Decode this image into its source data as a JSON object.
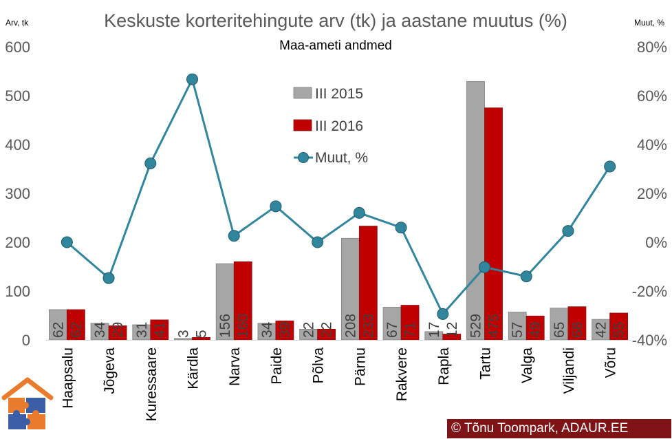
{
  "chart_data": {
    "type": "bar+line",
    "title": "Keskuste korteritehingute arv (tk) ja aastane muutus (%)",
    "subtitle": "Maa-ameti andmed",
    "y_left_label": "Arv, tk",
    "y_right_label": "Muut, %",
    "y_left_ticks": [
      "0",
      "100",
      "200",
      "300",
      "400",
      "500",
      "600"
    ],
    "y_right_ticks": [
      "-40%",
      "-20%",
      "0%",
      "20%",
      "40%",
      "60%",
      "80%"
    ],
    "ylim_left": [
      0,
      600
    ],
    "ylim_right": [
      -0.4,
      0.8
    ],
    "categories": [
      "Haapsalu",
      "Jõgeva",
      "Kuressaare",
      "Kärdla",
      "Narva",
      "Paide",
      "Põlva",
      "Pärnu",
      "Rakvere",
      "Rapla",
      "Tartu",
      "Valga",
      "Viljandi",
      "Võru"
    ],
    "series": [
      {
        "name": "III 2015",
        "kind": "bar",
        "color": "#a6a6a6",
        "values": [
          62,
          34,
          31,
          3,
          156,
          34,
          22,
          208,
          67,
          17,
          529,
          57,
          65,
          42
        ]
      },
      {
        "name": "III 2016",
        "kind": "bar",
        "color": "#c00000",
        "values": [
          62,
          29,
          41,
          5,
          160,
          39,
          22,
          233,
          71,
          12,
          475,
          49,
          68,
          55
        ]
      },
      {
        "name": "Muut, %",
        "kind": "line",
        "axis": "right",
        "color": "#31859c",
        "marker_fill": "#31859c",
        "values": [
          0.0,
          -0.147,
          0.323,
          0.667,
          0.026,
          0.147,
          0.0,
          0.12,
          0.06,
          -0.294,
          -0.102,
          -0.14,
          0.046,
          0.31
        ]
      }
    ],
    "legend": "inside-top-center",
    "grid": false
  },
  "credit": "Tõnu Toompark, ADAUR.EE",
  "credit_symbol": "©"
}
